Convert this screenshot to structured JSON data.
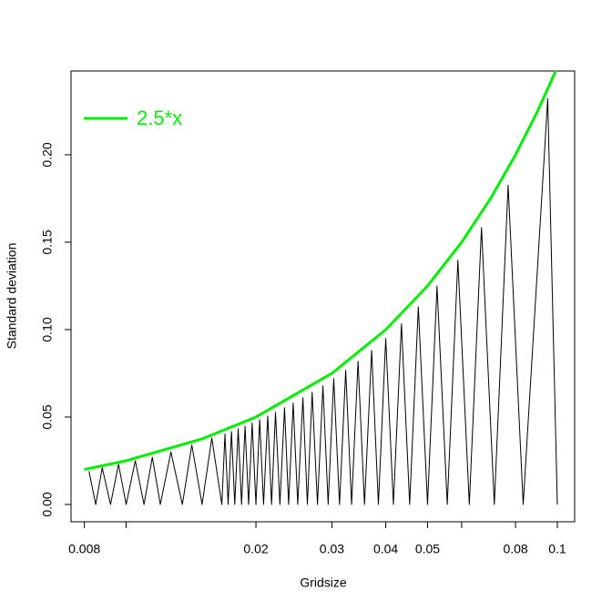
{
  "chart_data": {
    "type": "line",
    "xlabel": "Gridsize",
    "ylabel": "Standard deviation",
    "xscale": "log",
    "xlim": [
      0.00745,
      0.1097
    ],
    "ylim": [
      -0.0099,
      0.2479
    ],
    "xticks": [
      {
        "value": 0.008,
        "label": "0.008"
      },
      {
        "value": 0.01,
        "label": null
      },
      {
        "value": 0.02,
        "label": "0.02"
      },
      {
        "value": 0.03,
        "label": "0.03"
      },
      {
        "value": 0.04,
        "label": "0.04"
      },
      {
        "value": 0.05,
        "label": "0.05"
      },
      {
        "value": 0.06,
        "label": null
      },
      {
        "value": 0.08,
        "label": "0.08"
      },
      {
        "value": 0.1,
        "label": "0.1"
      }
    ],
    "yticks": [
      {
        "value": 0,
        "label": "0.00"
      },
      {
        "value": 0.05,
        "label": "0.05"
      },
      {
        "value": 0.1,
        "label": "0.10"
      },
      {
        "value": 0.15,
        "label": "0.15"
      },
      {
        "value": 0.2,
        "label": "0.20"
      }
    ],
    "legend": "topleft",
    "series": [
      {
        "color": "#000000",
        "width": 1,
        "x": [
          0.0082,
          0.0085,
          0.0088,
          0.0092,
          0.0096,
          0.01,
          0.0105,
          0.011,
          0.0115,
          0.012,
          0.0127,
          0.0135,
          0.0142,
          0.015,
          0.0158,
          0.01667,
          0.01695,
          0.01724,
          0.01755,
          0.01786,
          0.01819,
          0.01852,
          0.01887,
          0.01923,
          0.0196,
          0.02,
          0.0204,
          0.02083,
          0.0213,
          0.02174,
          0.0222,
          0.02273,
          0.0233,
          0.02381,
          0.0244,
          0.025,
          0.0257,
          0.02632,
          0.027,
          0.02778,
          0.0286,
          0.02941,
          0.0303,
          0.03125,
          0.0323,
          0.03333,
          0.0345,
          0.03571,
          0.0371,
          0.03846,
          0.04,
          0.04167,
          0.0435,
          0.04545,
          0.0476,
          0.05,
          0.0526,
          0.05556,
          0.0588,
          0.0625,
          0.0667,
          0.07143,
          0.0769,
          0.08333,
          0.095,
          0.1
        ],
        "values": [
          0.019,
          0,
          0.021,
          0,
          0.023,
          0,
          0.025,
          0,
          0.027,
          0,
          0.03,
          0,
          0.034,
          0,
          0.038,
          0,
          0.0403,
          0,
          0.0417,
          0,
          0.0432,
          0,
          0.0448,
          0,
          0.0466,
          0,
          0.0485,
          0,
          0.0506,
          0,
          0.0527,
          0,
          0.0553,
          0,
          0.058,
          0,
          0.061,
          0,
          0.0641,
          0,
          0.0679,
          0,
          0.072,
          0,
          0.0767,
          0,
          0.0819,
          0,
          0.0881,
          0,
          0.095,
          0,
          0.1033,
          0,
          0.1131,
          0,
          0.1249,
          0,
          0.1397,
          0,
          0.1584,
          0,
          0.1826,
          0,
          0.232,
          0
        ]
      },
      {
        "name": "2.5*x",
        "color": "#00ee00",
        "width": 3,
        "x": [
          0.008,
          0.01,
          0.015,
          0.02,
          0.03,
          0.04,
          0.05,
          0.06,
          0.07,
          0.08,
          0.09,
          0.1
        ],
        "values": [
          0.02,
          0.025,
          0.0375,
          0.05,
          0.075,
          0.1,
          0.125,
          0.15,
          0.175,
          0.2,
          0.225,
          0.25
        ]
      }
    ]
  }
}
